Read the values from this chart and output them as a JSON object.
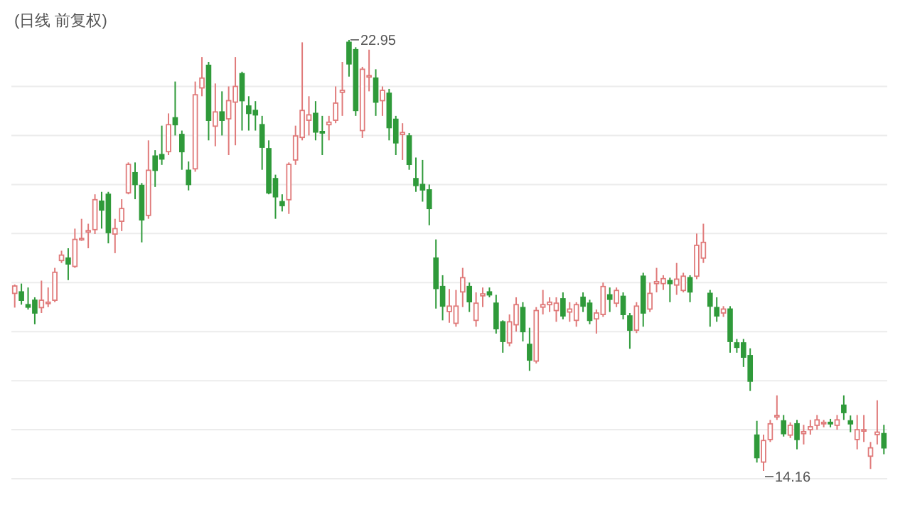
{
  "chart_data": {
    "type": "candlestick",
    "title": "(日线 前复权)",
    "categories": [
      null,
      null,
      null,
      null,
      null,
      null,
      null,
      null,
      null,
      null,
      null,
      null,
      null,
      null,
      null,
      null,
      null,
      null,
      null,
      null,
      null,
      null,
      null,
      null,
      null,
      null,
      null,
      null,
      null,
      null,
      null,
      null,
      null,
      null,
      null,
      null,
      null,
      null,
      null,
      null,
      null,
      null,
      null,
      null,
      null,
      null,
      null,
      null,
      null,
      null,
      null,
      null,
      null,
      null,
      null,
      null,
      null,
      null,
      null,
      null,
      null,
      null,
      null,
      null,
      null,
      null,
      null,
      null,
      null,
      null,
      null,
      null,
      null,
      null,
      null,
      null,
      null,
      null,
      null,
      null,
      null,
      null,
      null,
      null,
      null,
      null,
      null,
      null,
      null,
      null,
      null,
      null,
      null,
      null,
      null,
      null,
      null,
      null,
      null,
      null,
      null,
      null,
      null,
      null,
      null,
      null,
      null,
      null,
      null,
      null,
      null,
      null,
      null,
      null,
      null,
      null,
      null,
      null,
      null,
      null,
      null,
      null,
      null,
      null,
      null,
      null,
      null,
      null,
      null,
      null,
      null
    ],
    "ohlc": [
      [
        17.78,
        17.96,
        17.49,
        17.93
      ],
      [
        17.81,
        17.98,
        17.55,
        17.64
      ],
      [
        17.55,
        17.9,
        17.45,
        17.5
      ],
      [
        17.64,
        17.7,
        17.15,
        17.38
      ],
      [
        17.49,
        18.04,
        17.38,
        17.64
      ],
      [
        17.58,
        17.9,
        17.5,
        17.6
      ],
      [
        17.64,
        18.3,
        17.6,
        18.21
      ],
      [
        18.45,
        18.65,
        18.4,
        18.56
      ],
      [
        18.5,
        18.7,
        18.05,
        18.38
      ],
      [
        18.33,
        19.1,
        18.3,
        18.88
      ],
      [
        18.88,
        19.3,
        18.85,
        18.9
      ],
      [
        19.03,
        19.2,
        18.7,
        19.06
      ],
      [
        19.08,
        19.8,
        18.99,
        19.69
      ],
      [
        19.66,
        19.85,
        19.1,
        19.48
      ],
      [
        19.8,
        19.85,
        18.8,
        19.02
      ],
      [
        18.99,
        19.3,
        18.6,
        19.1
      ],
      [
        19.25,
        19.7,
        19.05,
        19.51
      ],
      [
        19.83,
        20.45,
        19.8,
        20.41
      ],
      [
        20.24,
        20.45,
        19.7,
        20.0
      ],
      [
        19.98,
        20.03,
        18.82,
        19.28
      ],
      [
        19.37,
        20.9,
        19.3,
        20.29
      ],
      [
        20.58,
        20.7,
        19.95,
        20.29
      ],
      [
        20.61,
        21.2,
        20.4,
        20.52
      ],
      [
        20.67,
        21.45,
        20.6,
        21.22
      ],
      [
        21.36,
        22.1,
        21.0,
        21.22
      ],
      [
        21.02,
        21.1,
        20.3,
        20.67
      ],
      [
        20.29,
        20.47,
        19.88,
        20.0
      ],
      [
        20.32,
        22.1,
        20.26,
        21.83
      ],
      [
        21.97,
        22.6,
        21.8,
        22.17
      ],
      [
        22.43,
        22.5,
        20.9,
        21.31
      ],
      [
        21.19,
        22.06,
        20.78,
        21.48
      ],
      [
        21.48,
        21.9,
        21.0,
        21.31
      ],
      [
        21.34,
        22.0,
        20.6,
        21.71
      ],
      [
        21.68,
        22.6,
        20.8,
        22.0
      ],
      [
        22.26,
        22.3,
        21.1,
        21.71
      ],
      [
        21.6,
        21.8,
        21.1,
        21.45
      ],
      [
        21.51,
        21.7,
        21.1,
        21.42
      ],
      [
        21.22,
        21.4,
        20.3,
        20.76
      ],
      [
        20.73,
        20.9,
        19.8,
        19.83
      ],
      [
        20.12,
        20.2,
        19.3,
        19.75
      ],
      [
        19.65,
        19.8,
        19.45,
        19.57
      ],
      [
        19.69,
        20.45,
        19.4,
        20.41
      ],
      [
        20.5,
        21.2,
        20.4,
        20.99
      ],
      [
        20.96,
        22.9,
        20.9,
        21.51
      ],
      [
        21.31,
        21.8,
        21.0,
        21.42
      ],
      [
        21.45,
        21.7,
        20.9,
        21.07
      ],
      [
        21.08,
        21.4,
        20.6,
        21.06
      ],
      [
        21.22,
        21.4,
        20.9,
        21.27
      ],
      [
        21.31,
        22.0,
        21.25,
        21.66
      ],
      [
        21.88,
        22.5,
        21.4,
        21.92
      ],
      [
        22.9,
        22.95,
        22.2,
        22.46
      ],
      [
        22.75,
        22.8,
        21.4,
        21.51
      ],
      [
        21.1,
        22.4,
        20.95,
        22.35
      ],
      [
        22.2,
        22.75,
        21.9,
        22.22
      ],
      [
        22.17,
        22.35,
        21.4,
        21.68
      ],
      [
        21.71,
        22.0,
        21.4,
        21.92
      ],
      [
        21.86,
        21.95,
        20.9,
        21.16
      ],
      [
        21.33,
        21.4,
        20.6,
        20.85
      ],
      [
        21.02,
        21.25,
        20.5,
        21.06
      ],
      [
        20.99,
        21.05,
        20.3,
        20.41
      ],
      [
        20.12,
        20.55,
        19.85,
        19.98
      ],
      [
        20.0,
        20.5,
        19.65,
        19.89
      ],
      [
        19.89,
        20.0,
        19.17,
        19.51
      ],
      [
        18.5,
        18.88,
        17.47,
        17.88
      ],
      [
        17.92,
        18.15,
        17.23,
        17.52
      ],
      [
        17.41,
        17.87,
        17.18,
        17.52
      ],
      [
        17.17,
        17.85,
        17.1,
        17.52
      ],
      [
        17.81,
        18.3,
        17.5,
        18.1
      ],
      [
        17.92,
        18.0,
        17.4,
        17.61
      ],
      [
        17.23,
        17.8,
        17.1,
        17.58
      ],
      [
        17.73,
        17.9,
        17.5,
        17.77
      ],
      [
        17.81,
        17.9,
        17.7,
        17.75
      ],
      [
        17.58,
        17.75,
        16.96,
        17.06
      ],
      [
        17.2,
        17.23,
        16.57,
        16.8
      ],
      [
        16.77,
        17.35,
        16.7,
        17.2
      ],
      [
        17.14,
        17.7,
        17.0,
        17.55
      ],
      [
        17.49,
        17.6,
        16.8,
        17.0
      ],
      [
        16.74,
        17.08,
        16.2,
        16.42
      ],
      [
        16.4,
        17.5,
        16.35,
        17.43
      ],
      [
        17.5,
        17.85,
        17.35,
        17.55
      ],
      [
        17.55,
        17.7,
        17.4,
        17.6
      ],
      [
        17.43,
        17.7,
        17.2,
        17.58
      ],
      [
        17.67,
        17.8,
        17.25,
        17.32
      ],
      [
        17.4,
        17.6,
        17.2,
        17.46
      ],
      [
        17.23,
        17.6,
        17.1,
        17.55
      ],
      [
        17.7,
        17.8,
        17.4,
        17.52
      ],
      [
        17.58,
        17.65,
        17.15,
        17.23
      ],
      [
        17.26,
        17.45,
        16.96,
        17.38
      ],
      [
        17.35,
        18.0,
        17.3,
        17.92
      ],
      [
        17.75,
        17.9,
        17.4,
        17.66
      ],
      [
        17.58,
        17.9,
        17.5,
        17.84
      ],
      [
        17.72,
        17.8,
        17.25,
        17.35
      ],
      [
        17.32,
        17.38,
        16.65,
        17.03
      ],
      [
        17.03,
        17.6,
        16.97,
        17.52
      ],
      [
        18.13,
        18.2,
        17.1,
        17.38
      ],
      [
        17.46,
        18.0,
        17.4,
        17.78
      ],
      [
        17.98,
        18.3,
        17.8,
        18.02
      ],
      [
        17.98,
        18.15,
        17.85,
        18.08
      ],
      [
        18.04,
        18.1,
        17.6,
        17.98
      ],
      [
        17.95,
        18.4,
        17.75,
        18.07
      ],
      [
        17.84,
        18.2,
        17.8,
        18.13
      ],
      [
        18.1,
        18.15,
        17.6,
        17.81
      ],
      [
        18.13,
        19.0,
        18.07,
        18.76
      ],
      [
        18.5,
        19.2,
        18.4,
        18.82
      ],
      [
        17.78,
        17.85,
        17.1,
        17.52
      ],
      [
        17.49,
        17.7,
        17.2,
        17.32
      ],
      [
        17.38,
        17.52,
        17.3,
        17.46
      ],
      [
        17.46,
        17.52,
        16.57,
        16.8
      ],
      [
        16.77,
        16.85,
        16.57,
        16.68
      ],
      [
        16.77,
        16.85,
        16.28,
        16.48
      ],
      [
        16.51,
        16.66,
        15.79,
        15.99
      ],
      [
        14.89,
        15.18,
        14.33,
        14.43
      ],
      [
        14.34,
        14.9,
        14.16,
        14.78
      ],
      [
        14.8,
        15.2,
        14.75,
        15.12
      ],
      [
        15.26,
        15.7,
        15.2,
        15.29
      ],
      [
        15.18,
        15.3,
        14.86,
        14.92
      ],
      [
        14.89,
        15.15,
        14.83,
        15.09
      ],
      [
        15.12,
        15.2,
        14.6,
        14.8
      ],
      [
        14.92,
        15.1,
        14.7,
        14.96
      ],
      [
        15.0,
        15.2,
        14.9,
        15.06
      ],
      [
        15.09,
        15.3,
        15.0,
        15.2
      ],
      [
        15.12,
        15.2,
        15.05,
        15.15
      ],
      [
        15.15,
        15.22,
        15.05,
        15.12
      ],
      [
        15.09,
        15.3,
        15.0,
        15.2
      ],
      [
        15.5,
        15.7,
        15.2,
        15.35
      ],
      [
        15.18,
        15.29,
        14.95,
        15.12
      ],
      [
        14.8,
        15.3,
        14.6,
        15.0
      ],
      [
        14.98,
        15.3,
        14.75,
        15.0
      ],
      [
        14.46,
        14.75,
        14.2,
        14.63
      ],
      [
        14.9,
        15.6,
        14.7,
        14.95
      ],
      [
        14.92,
        15.1,
        14.5,
        14.63
      ]
    ],
    "yticks": [
      {
        "value": 14,
        "label": null
      },
      {
        "value": 15,
        "label": null
      },
      {
        "value": 16,
        "label": null
      },
      {
        "value": 17,
        "label": null
      },
      {
        "value": 18,
        "label": null
      },
      {
        "value": 19,
        "label": null
      },
      {
        "value": 20,
        "label": null
      },
      {
        "value": 21,
        "label": null
      },
      {
        "value": 22,
        "label": null
      }
    ],
    "grid": "y",
    "annotations": [
      "22.95",
      "14.16"
    ]
  }
}
